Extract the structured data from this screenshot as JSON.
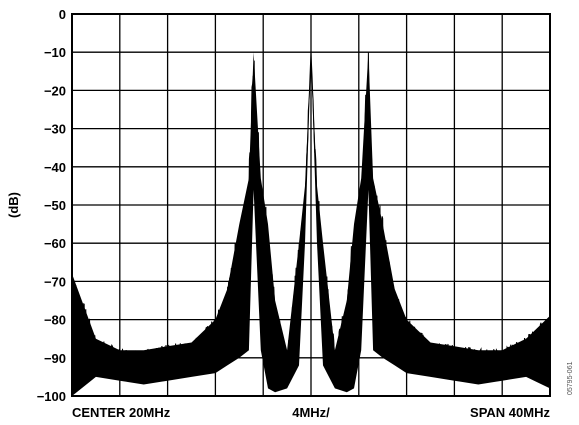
{
  "chart_data": {
    "type": "line",
    "title": "",
    "ylabel": "(dB)",
    "ylim": [
      -100,
      0
    ],
    "yticks": [
      0,
      -10,
      -20,
      -30,
      -40,
      -50,
      -60,
      -70,
      -80,
      -90,
      -100
    ],
    "ytick_labels": [
      "0",
      "−10",
      "−20",
      "−30",
      "−40",
      "−50",
      "−60",
      "−70",
      "−80",
      "−90",
      "−100"
    ],
    "xlim": [
      0,
      40
    ],
    "x_divisions": 10,
    "grid": true,
    "footer": {
      "left": "CENTER 20MHz",
      "center": "4MHz/",
      "right": "SPAN 40MHz"
    },
    "figure_id": "05795-061",
    "series": [
      {
        "x": [
          0,
          2,
          4,
          6,
          8,
          10,
          12,
          13,
          14,
          14.8,
          15.2,
          15.8,
          16.4,
          17,
          18,
          19,
          19.5,
          20,
          20.5,
          21,
          22,
          23,
          23.6,
          24.2,
          24.8,
          25.2,
          26,
          27,
          28,
          30,
          32,
          34,
          36,
          38,
          40
        ],
        "y": [
          -68,
          -85,
          -88,
          -88,
          -87,
          -86,
          -80,
          -72,
          -55,
          -43,
          -10,
          -43,
          -55,
          -75,
          -88,
          -60,
          -45,
          -10,
          -45,
          -60,
          -88,
          -75,
          -55,
          -43,
          -10,
          -43,
          -55,
          -72,
          -80,
          -86,
          -87,
          -88,
          -88,
          -85,
          -79
        ],
        "floor": [
          -100,
          -95,
          -96,
          -97,
          -96,
          -95,
          -94,
          -92,
          -90,
          -88,
          -46,
          -88,
          -98,
          -99,
          -98,
          -92,
          -60,
          -10,
          -60,
          -92,
          -98,
          -99,
          -98,
          -88,
          -46,
          -88,
          -90,
          -92,
          -94,
          -95,
          -96,
          -97,
          -96,
          -95,
          -98
        ]
      }
    ],
    "color": "#000000"
  }
}
